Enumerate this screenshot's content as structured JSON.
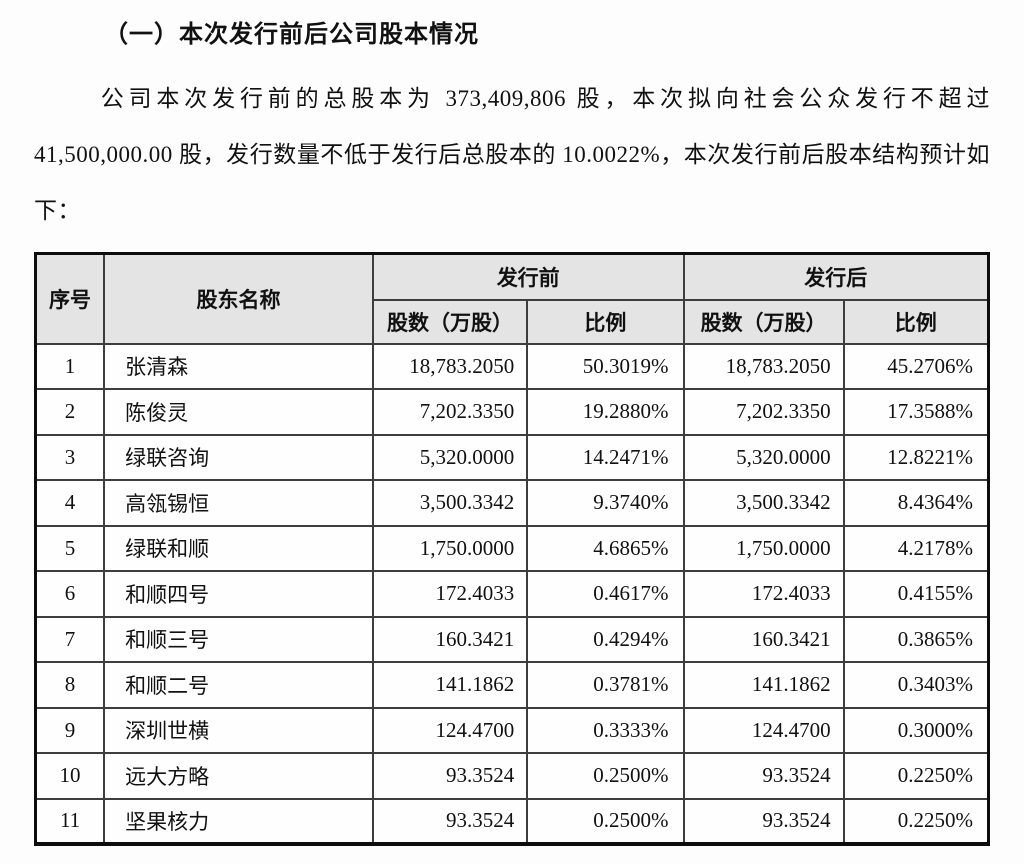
{
  "page": {
    "heading": "（一）本次发行前后公司股本情况",
    "paragraph": "公司本次发行前的总股本为 373,409,806 股，本次拟向社会公众发行不超过 41,500,000.00 股，发行数量不低于发行后总股本的 10.0022%，本次发行前后股本结构预计如下："
  },
  "table": {
    "headers": {
      "serial": "序号",
      "shareholder": "股东名称",
      "pre_issue": "发行前",
      "post_issue": "发行后",
      "shares": "股数（万股）",
      "ratio": "比例"
    },
    "rows": [
      {
        "no": "1",
        "name": "张清森",
        "pre_shares": "18,783.2050",
        "pre_ratio": "50.3019%",
        "post_shares": "18,783.2050",
        "post_ratio": "45.2706%"
      },
      {
        "no": "2",
        "name": "陈俊灵",
        "pre_shares": "7,202.3350",
        "pre_ratio": "19.2880%",
        "post_shares": "7,202.3350",
        "post_ratio": "17.3588%"
      },
      {
        "no": "3",
        "name": "绿联咨询",
        "pre_shares": "5,320.0000",
        "pre_ratio": "14.2471%",
        "post_shares": "5,320.0000",
        "post_ratio": "12.8221%"
      },
      {
        "no": "4",
        "name": "高瓴锡恒",
        "pre_shares": "3,500.3342",
        "pre_ratio": "9.3740%",
        "post_shares": "3,500.3342",
        "post_ratio": "8.4364%"
      },
      {
        "no": "5",
        "name": "绿联和顺",
        "pre_shares": "1,750.0000",
        "pre_ratio": "4.6865%",
        "post_shares": "1,750.0000",
        "post_ratio": "4.2178%"
      },
      {
        "no": "6",
        "name": "和顺四号",
        "pre_shares": "172.4033",
        "pre_ratio": "0.4617%",
        "post_shares": "172.4033",
        "post_ratio": "0.4155%"
      },
      {
        "no": "7",
        "name": "和顺三号",
        "pre_shares": "160.3421",
        "pre_ratio": "0.4294%",
        "post_shares": "160.3421",
        "post_ratio": "0.3865%"
      },
      {
        "no": "8",
        "name": "和顺二号",
        "pre_shares": "141.1862",
        "pre_ratio": "0.3781%",
        "post_shares": "141.1862",
        "post_ratio": "0.3403%"
      },
      {
        "no": "9",
        "name": "深圳世横",
        "pre_shares": "124.4700",
        "pre_ratio": "0.3333%",
        "post_shares": "124.4700",
        "post_ratio": "0.3000%"
      },
      {
        "no": "10",
        "name": "远大方略",
        "pre_shares": "93.3524",
        "pre_ratio": "0.2500%",
        "post_shares": "93.3524",
        "post_ratio": "0.2250%"
      },
      {
        "no": "11",
        "name": "坚果核力",
        "pre_shares": "93.3524",
        "pre_ratio": "0.2500%",
        "post_shares": "93.3524",
        "post_ratio": "0.2250%"
      }
    ]
  }
}
